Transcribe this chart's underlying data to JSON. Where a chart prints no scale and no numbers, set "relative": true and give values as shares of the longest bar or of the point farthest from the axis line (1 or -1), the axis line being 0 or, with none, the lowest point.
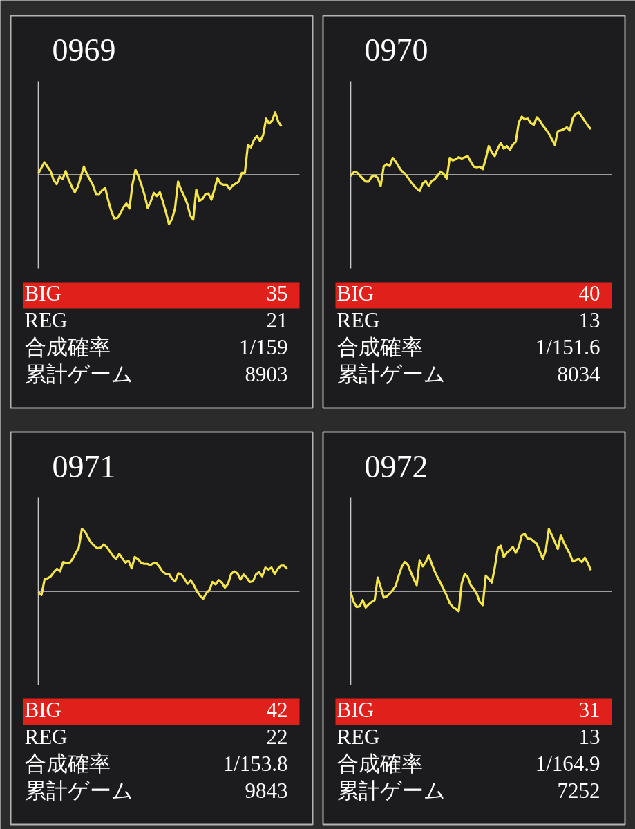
{
  "chart_data": [
    {
      "type": "line",
      "title": "0969",
      "relative": true,
      "color": "#f4e54b",
      "categories": [
        null,
        null,
        null,
        null,
        null,
        null,
        null,
        null,
        null,
        null,
        null,
        null,
        null,
        null,
        null,
        null,
        null,
        null,
        null,
        null,
        null,
        null,
        null,
        null,
        null,
        null,
        null,
        null,
        null,
        null,
        null,
        null,
        null,
        null,
        null,
        null,
        null,
        null,
        null,
        null,
        null,
        null,
        null,
        null,
        null,
        null,
        null,
        null,
        null,
        null,
        null,
        null,
        null,
        null,
        null,
        null,
        null,
        null,
        null,
        null,
        null,
        null,
        null,
        null,
        null,
        null,
        null,
        null,
        null,
        null,
        null,
        null,
        null,
        null,
        null,
        null,
        null,
        null,
        null,
        null,
        null,
        null,
        null,
        null,
        null,
        null,
        null
      ],
      "values": [
        0.02,
        0.11,
        0.2,
        0.13,
        0.06,
        -0.08,
        -0.15,
        -0.03,
        -0.07,
        0.06,
        -0.08,
        -0.19,
        -0.28,
        -0.19,
        -0.03,
        0.13,
        0.01,
        -0.08,
        -0.17,
        -0.31,
        -0.31,
        -0.25,
        -0.21,
        -0.41,
        -0.58,
        -0.7,
        -0.69,
        -0.62,
        -0.52,
        -0.46,
        -0.54,
        -0.15,
        0.08,
        -0.03,
        -0.17,
        -0.33,
        -0.53,
        -0.43,
        -0.29,
        -0.34,
        -0.28,
        -0.43,
        -0.6,
        -0.79,
        -0.71,
        -0.54,
        -0.11,
        -0.24,
        -0.34,
        -0.46,
        -0.65,
        -0.72,
        -0.24,
        -0.42,
        -0.39,
        -0.31,
        -0.3,
        -0.4,
        -0.23,
        -0.05,
        -0.14,
        -0.16,
        -0.16,
        -0.23,
        -0.17,
        -0.14,
        -0.11,
        0.03,
        0.03,
        0.48,
        0.44,
        0.56,
        0.62,
        0.54,
        0.63,
        0.9,
        0.82,
        0.87,
        1.0,
        0.85,
        0.78,
        null,
        null,
        null,
        null,
        null,
        null
      ],
      "annotations": [
        "BIG",
        "35",
        "REG",
        "21",
        "合成確率",
        "1/159",
        "累計ゲーム",
        "8903"
      ]
    },
    {
      "type": "line",
      "title": "0970",
      "relative": true,
      "color": "#f4e54b",
      "categories": [
        null,
        null,
        null,
        null,
        null,
        null,
        null,
        null,
        null,
        null,
        null,
        null,
        null,
        null,
        null,
        null,
        null,
        null,
        null,
        null,
        null,
        null,
        null,
        null,
        null,
        null,
        null,
        null,
        null,
        null,
        null,
        null,
        null,
        null,
        null,
        null,
        null,
        null,
        null,
        null,
        null,
        null,
        null,
        null,
        null,
        null,
        null,
        null,
        null,
        null,
        null,
        null,
        null,
        null,
        null,
        null,
        null,
        null,
        null,
        null,
        null,
        null,
        null,
        null,
        null,
        null,
        null,
        null,
        null,
        null,
        null,
        null,
        null,
        null,
        null,
        null,
        null,
        null,
        null,
        null,
        null,
        null,
        null,
        null,
        null,
        null,
        null,
        null
      ],
      "values": [
        -0.02,
        0.04,
        0.04,
        -0.01,
        -0.06,
        -0.11,
        -0.11,
        -0.03,
        -0.01,
        -0.05,
        -0.18,
        0.13,
        0.17,
        0.14,
        0.27,
        0.21,
        0.13,
        0.06,
        0.02,
        -0.04,
        -0.11,
        -0.17,
        -0.22,
        -0.26,
        -0.14,
        -0.1,
        -0.18,
        -0.1,
        -0.07,
        -0.01,
        0.05,
        0.01,
        -0.06,
        0.27,
        0.23,
        0.25,
        0.28,
        0.26,
        0.28,
        0.3,
        0.21,
        0.13,
        0.12,
        0.13,
        0.09,
        0.26,
        0.46,
        0.36,
        0.3,
        0.42,
        0.51,
        0.42,
        0.46,
        0.4,
        0.48,
        0.53,
        0.84,
        0.93,
        0.89,
        0.9,
        0.83,
        0.8,
        0.92,
        0.87,
        0.79,
        0.73,
        0.66,
        0.57,
        0.48,
        0.7,
        0.71,
        0.73,
        0.76,
        0.71,
        0.91,
        0.98,
        1.0,
        0.93,
        0.86,
        0.79,
        0.73,
        null,
        null,
        null,
        null,
        null,
        null,
        null
      ],
      "annotations": [
        "BIG",
        "40",
        "REG",
        "13",
        "合成確率",
        "1/151.6",
        "累計ゲーム",
        "8034"
      ]
    },
    {
      "type": "line",
      "title": "0971",
      "relative": true,
      "color": "#f4e54b",
      "categories": [
        null,
        null,
        null,
        null,
        null,
        null,
        null,
        null,
        null,
        null,
        null,
        null,
        null,
        null,
        null,
        null,
        null,
        null,
        null,
        null,
        null,
        null,
        null,
        null,
        null,
        null,
        null,
        null,
        null,
        null,
        null,
        null,
        null,
        null,
        null,
        null,
        null,
        null,
        null,
        null,
        null,
        null,
        null,
        null,
        null,
        null,
        null,
        null,
        null,
        null,
        null,
        null,
        null,
        null,
        null,
        null,
        null,
        null,
        null,
        null,
        null,
        null,
        null,
        null,
        null,
        null,
        null,
        null,
        null,
        null,
        null,
        null,
        null,
        null,
        null,
        null,
        null,
        null,
        null,
        null,
        null,
        null,
        null,
        null,
        null
      ],
      "values": [
        -0.01,
        -0.06,
        0.19,
        0.21,
        0.24,
        0.31,
        0.36,
        0.32,
        0.47,
        0.45,
        0.45,
        0.52,
        0.61,
        0.7,
        1.0,
        0.96,
        0.86,
        0.78,
        0.73,
        0.69,
        0.7,
        0.75,
        0.71,
        0.64,
        0.57,
        0.52,
        0.6,
        0.53,
        0.46,
        0.49,
        0.37,
        0.55,
        0.52,
        0.46,
        0.44,
        0.44,
        0.42,
        0.45,
        0.45,
        0.39,
        0.31,
        0.28,
        0.28,
        0.2,
        0.16,
        0.29,
        0.27,
        0.2,
        0.12,
        0.18,
        0.1,
        0.0,
        -0.07,
        -0.12,
        -0.03,
        0.02,
        0.15,
        0.11,
        0.18,
        0.14,
        0.06,
        0.12,
        0.28,
        0.32,
        0.29,
        0.19,
        0.27,
        0.22,
        0.15,
        0.16,
        0.27,
        0.31,
        0.24,
        0.38,
        0.35,
        0.38,
        0.28,
        0.36,
        0.41,
        0.41,
        0.36,
        null,
        null,
        null,
        null
      ],
      "annotations": [
        "BIG",
        "42",
        "REG",
        "22",
        "合成確率",
        "1/153.8",
        "累計ゲーム",
        "9843"
      ]
    },
    {
      "type": "line",
      "title": "0972",
      "relative": true,
      "color": "#f4e54b",
      "categories": [
        null,
        null,
        null,
        null,
        null,
        null,
        null,
        null,
        null,
        null,
        null,
        null,
        null,
        null,
        null,
        null,
        null,
        null,
        null,
        null,
        null,
        null,
        null,
        null,
        null,
        null,
        null,
        null,
        null,
        null,
        null,
        null,
        null,
        null,
        null,
        null,
        null,
        null,
        null,
        null,
        null,
        null,
        null,
        null,
        null,
        null,
        null,
        null,
        null,
        null,
        null,
        null,
        null,
        null,
        null,
        null,
        null,
        null,
        null,
        null,
        null,
        null,
        null,
        null,
        null,
        null,
        null,
        null,
        null,
        null,
        null,
        null,
        null,
        null,
        null,
        null,
        null,
        null,
        null,
        null,
        null,
        null,
        null,
        null,
        null,
        null,
        null,
        null
      ],
      "values": [
        -0.01,
        -0.17,
        -0.25,
        -0.24,
        -0.14,
        -0.26,
        -0.21,
        -0.17,
        -0.14,
        0.22,
        0.07,
        -0.1,
        -0.08,
        -0.04,
        0.02,
        0.09,
        0.25,
        0.39,
        0.47,
        0.43,
        0.31,
        0.2,
        0.1,
        0.5,
        0.4,
        0.47,
        0.58,
        0.44,
        0.32,
        0.22,
        0.13,
        0.03,
        -0.07,
        -0.19,
        -0.25,
        -0.28,
        -0.32,
        0.13,
        0.28,
        0.23,
        0.1,
        0.04,
        -0.04,
        -0.17,
        -0.22,
        0.25,
        0.2,
        0.14,
        0.38,
        0.69,
        0.73,
        0.55,
        0.62,
        0.66,
        0.71,
        0.62,
        0.71,
        0.9,
        0.92,
        0.84,
        0.84,
        0.8,
        0.76,
        0.64,
        0.52,
        0.66,
        1.0,
        0.9,
        0.79,
        0.68,
        0.9,
        0.78,
        0.69,
        0.6,
        0.48,
        0.5,
        0.52,
        0.47,
        0.54,
        0.45,
        0.34,
        null,
        null,
        null,
        null,
        null,
        null,
        null
      ],
      "annotations": [
        "BIG",
        "31",
        "REG",
        "13",
        "合成確率",
        "1/164.9",
        "累計ゲーム",
        "7252"
      ]
    }
  ]
}
